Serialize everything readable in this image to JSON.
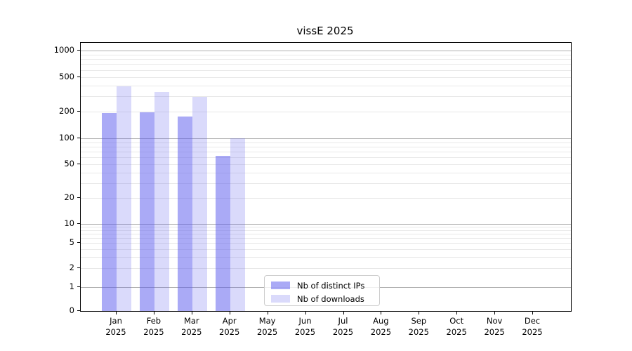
{
  "chart_data": {
    "type": "bar",
    "title": "vissE 2025",
    "categories": [
      "Jan",
      "Feb",
      "Mar",
      "Apr",
      "May",
      "Jun",
      "Jul",
      "Aug",
      "Sep",
      "Oct",
      "Nov",
      "Dec"
    ],
    "year_label": "2025",
    "series": [
      {
        "name": "Nb of distinct IPs",
        "color": "rgba(85,85,238,0.5)",
        "values": [
          195,
          197,
          178,
          63,
          0,
          0,
          0,
          0,
          0,
          0,
          0,
          0
        ]
      },
      {
        "name": "Nb of downloads",
        "color": "rgba(85,85,238,0.22)",
        "values": [
          390,
          335,
          295,
          100,
          0,
          0,
          0,
          0,
          0,
          0,
          0,
          0
        ]
      }
    ],
    "yscale": "symlog",
    "ylim": [
      0,
      1200
    ],
    "y_ticks": [
      1000,
      500,
      200,
      100,
      50,
      20,
      10,
      5,
      2,
      1,
      0
    ],
    "grid": "on",
    "legend_position": "lower center"
  },
  "colors": {
    "major_grid": "#b0b0b0",
    "minor_grid": "#e8e8e8",
    "spine": "#000000",
    "background": "#ffffff"
  }
}
